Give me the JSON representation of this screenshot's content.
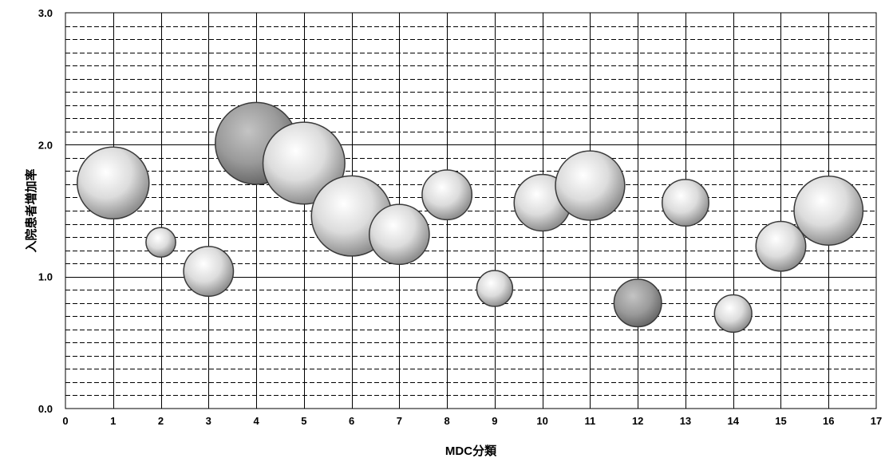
{
  "chart_data": {
    "type": "scatter",
    "subtype": "bubble",
    "xlabel": "MDC分類",
    "ylabel": "入院患者増加率",
    "xlim": [
      0,
      17
    ],
    "ylim": [
      0.0,
      3.0
    ],
    "xticks": [
      "0",
      "1",
      "2",
      "3",
      "4",
      "5",
      "6",
      "7",
      "8",
      "9",
      "10",
      "11",
      "12",
      "13",
      "14",
      "15",
      "16",
      "17"
    ],
    "yticks": [
      "0.0",
      "1.0",
      "2.0",
      "3.0"
    ],
    "grid": true,
    "legend": "none",
    "bubbles": [
      {
        "x": 1,
        "y": 1.71,
        "size": 1.0,
        "style": "light"
      },
      {
        "x": 2,
        "y": 1.26,
        "size": 0.17,
        "style": "light"
      },
      {
        "x": 3,
        "y": 1.04,
        "size": 0.48,
        "style": "light"
      },
      {
        "x": 4,
        "y": 2.01,
        "size": 1.3,
        "style": "dark"
      },
      {
        "x": 5,
        "y": 1.86,
        "size": 1.3,
        "style": "light"
      },
      {
        "x": 6,
        "y": 1.46,
        "size": 1.25,
        "style": "light"
      },
      {
        "x": 7,
        "y": 1.32,
        "size": 0.7,
        "style": "light"
      },
      {
        "x": 8,
        "y": 1.62,
        "size": 0.48,
        "style": "light"
      },
      {
        "x": 9,
        "y": 0.91,
        "size": 0.25,
        "style": "light"
      },
      {
        "x": 10,
        "y": 1.56,
        "size": 0.62,
        "style": "light"
      },
      {
        "x": 11,
        "y": 1.69,
        "size": 0.93,
        "style": "light"
      },
      {
        "x": 12,
        "y": 0.8,
        "size": 0.44,
        "style": "dark"
      },
      {
        "x": 13,
        "y": 1.56,
        "size": 0.42,
        "style": "light"
      },
      {
        "x": 14,
        "y": 0.72,
        "size": 0.27,
        "style": "light"
      },
      {
        "x": 15,
        "y": 1.23,
        "size": 0.48,
        "style": "light"
      },
      {
        "x": 16,
        "y": 1.5,
        "size": 0.92,
        "style": "light"
      }
    ],
    "colors": {
      "background": "#ffffff",
      "grid": "#000000",
      "bubble_light_center": "#ffffff",
      "bubble_light_edge": "#8f8f8f",
      "bubble_dark_center": "#bdbdbd",
      "bubble_dark_edge": "#6a6a6a",
      "bubble_outline": "#3a3a3a"
    }
  }
}
